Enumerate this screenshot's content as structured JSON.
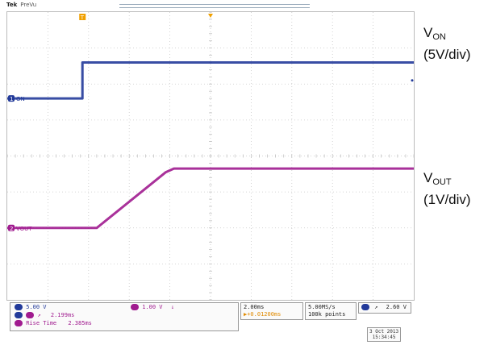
{
  "scope": {
    "brand": "Tek",
    "mode": "PreVu"
  },
  "chart_data": {
    "type": "line",
    "x": {
      "divisions": 10,
      "time_per_div_ms": 2.0
    },
    "y": {
      "divisions": 8
    },
    "series": [
      {
        "name": "VON",
        "color": "#223a9a",
        "level_label": "1",
        "waveform_div": [
          [
            0.0,
            5.6
          ],
          [
            1.85,
            5.6
          ],
          [
            1.85,
            6.6
          ],
          [
            10.0,
            6.6
          ]
        ]
      },
      {
        "name": "VOUT",
        "color": "#a01b8f",
        "level_label": "2",
        "waveform_div": [
          [
            0.0,
            2.0
          ],
          [
            2.2,
            2.0
          ],
          [
            3.9,
            3.55
          ],
          [
            4.1,
            3.65
          ],
          [
            10.0,
            3.65
          ]
        ]
      }
    ],
    "annotations": [
      {
        "main": "V",
        "sub": "ON",
        "scale": "(5V/div)"
      },
      {
        "main": "V",
        "sub": "OUT",
        "scale": "(1V/div)"
      }
    ]
  },
  "trace_labels": {
    "ch1": "ON",
    "ch2": "VOUT"
  },
  "markers": {
    "trigger_T": "T"
  },
  "readout": {
    "ch1_scale": "5.00 V",
    "ch2_scale": "1.00 V",
    "ch2_unit_mark": "↓",
    "meas1_icon": "↗",
    "meas1_value": "2.199ms",
    "meas2_label": "Rise Time",
    "meas2_value": "2.385ms",
    "timebase": "2.00ms",
    "position": "+0.01200ms",
    "sample_rate": "5.00MS/s",
    "record_length": "100k points",
    "trigger_slope": "↗",
    "trigger_level": "2.60 V",
    "date": "3 Oct 2013",
    "time": "15:34:45"
  }
}
